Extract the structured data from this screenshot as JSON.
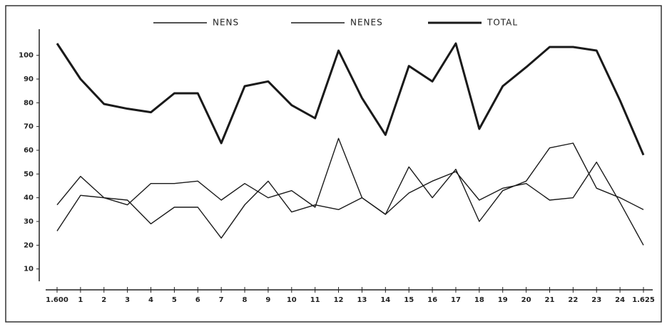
{
  "chart_data": {
    "type": "line",
    "categories": [
      "1.600",
      "1",
      "2",
      "3",
      "4",
      "5",
      "6",
      "7",
      "8",
      "9",
      "10",
      "11",
      "12",
      "13",
      "14",
      "15",
      "16",
      "17",
      "18",
      "19",
      "20",
      "21",
      "22",
      "23",
      "24",
      "1.625"
    ],
    "series": [
      {
        "name": "NENS",
        "color": "#1a1a1a",
        "linewidth": 1.4,
        "values": [
          37,
          49,
          40,
          39,
          29,
          36,
          36,
          23,
          37,
          47,
          34,
          37,
          35,
          40,
          33,
          53,
          40,
          52,
          30,
          43,
          47,
          61,
          63,
          44,
          40,
          35
        ]
      },
      {
        "name": "NENES",
        "color": "#1a1a1a",
        "linewidth": 1.4,
        "values": [
          26,
          41,
          40,
          37,
          46,
          46,
          47,
          39,
          46,
          40,
          43,
          36,
          65,
          40,
          33,
          42,
          47,
          51,
          39,
          44,
          46,
          39,
          40,
          55,
          38,
          20
        ]
      },
      {
        "name": "TOTAL",
        "color": "#1a1a1a",
        "linewidth": 3,
        "values": [
          105,
          90,
          79.5,
          77.5,
          76,
          84,
          84,
          63,
          87,
          89,
          79,
          73.5,
          102,
          82,
          66.5,
          95.5,
          89,
          105,
          69,
          87,
          95,
          103.5,
          103.5,
          102,
          81,
          58
        ]
      }
    ],
    "ylim": [
      0,
      111
    ],
    "yticks": [
      10,
      20,
      30,
      40,
      50,
      60,
      70,
      80,
      90,
      100
    ]
  }
}
